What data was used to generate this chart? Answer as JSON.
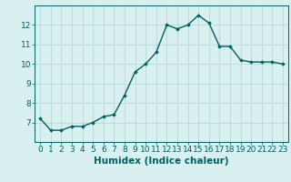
{
  "x": [
    0,
    1,
    2,
    3,
    4,
    5,
    6,
    7,
    8,
    9,
    10,
    11,
    12,
    13,
    14,
    15,
    16,
    17,
    18,
    19,
    20,
    21,
    22,
    23
  ],
  "y": [
    7.2,
    6.6,
    6.6,
    6.8,
    6.8,
    7.0,
    7.3,
    7.4,
    8.4,
    9.6,
    10.0,
    10.6,
    12.0,
    11.8,
    12.0,
    12.5,
    12.1,
    10.9,
    10.9,
    10.2,
    10.1,
    10.1,
    10.1,
    10.0
  ],
  "xlabel": "Humidex (Indice chaleur)",
  "ylim": [
    6.0,
    13.0
  ],
  "xlim": [
    -0.5,
    23.5
  ],
  "yticks": [
    7,
    8,
    9,
    10,
    11,
    12
  ],
  "xticks": [
    0,
    1,
    2,
    3,
    4,
    5,
    6,
    7,
    8,
    9,
    10,
    11,
    12,
    13,
    14,
    15,
    16,
    17,
    18,
    19,
    20,
    21,
    22,
    23
  ],
  "line_color": "#006060",
  "marker": "D",
  "marker_size": 1.8,
  "bg_color": "#d8f0f0",
  "grid_color": "#b8d8d8",
  "tick_label_fontsize": 6.5,
  "xlabel_fontsize": 7.5,
  "line_width": 1.0
}
